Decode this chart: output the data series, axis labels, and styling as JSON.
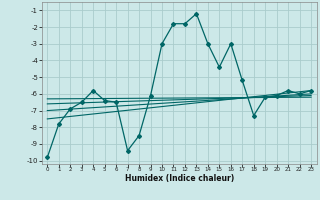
{
  "xlabel": "Humidex (Indice chaleur)",
  "background_color": "#cce8e8",
  "grid_color": "#aacccc",
  "line_color": "#006666",
  "xlim": [
    -0.5,
    23.5
  ],
  "ylim": [
    -10.2,
    -0.5
  ],
  "xticks": [
    0,
    1,
    2,
    3,
    4,
    5,
    6,
    7,
    8,
    9,
    10,
    11,
    12,
    13,
    14,
    15,
    16,
    17,
    18,
    19,
    20,
    21,
    22,
    23
  ],
  "yticks": [
    -1,
    -2,
    -3,
    -4,
    -5,
    -6,
    -7,
    -8,
    -9,
    -10
  ],
  "main_line_x": [
    0,
    1,
    2,
    3,
    4,
    5,
    6,
    7,
    8,
    9,
    10,
    11,
    12,
    13,
    14,
    15,
    16,
    17,
    18,
    19,
    20,
    21,
    22,
    23
  ],
  "main_line_y": [
    -9.8,
    -7.8,
    -6.9,
    -6.5,
    -5.8,
    -6.4,
    -6.5,
    -9.4,
    -8.5,
    -6.1,
    -3.0,
    -1.8,
    -1.8,
    -1.2,
    -3.0,
    -4.4,
    -3.0,
    -5.2,
    -7.3,
    -6.2,
    -6.1,
    -5.8,
    -6.0,
    -5.8
  ],
  "trend_lines": [
    {
      "x": [
        0,
        23
      ],
      "y": [
        -7.5,
        -5.8
      ]
    },
    {
      "x": [
        0,
        23
      ],
      "y": [
        -7.0,
        -6.0
      ]
    },
    {
      "x": [
        0,
        23
      ],
      "y": [
        -6.6,
        -6.1
      ]
    },
    {
      "x": [
        0,
        23
      ],
      "y": [
        -6.3,
        -6.2
      ]
    }
  ]
}
